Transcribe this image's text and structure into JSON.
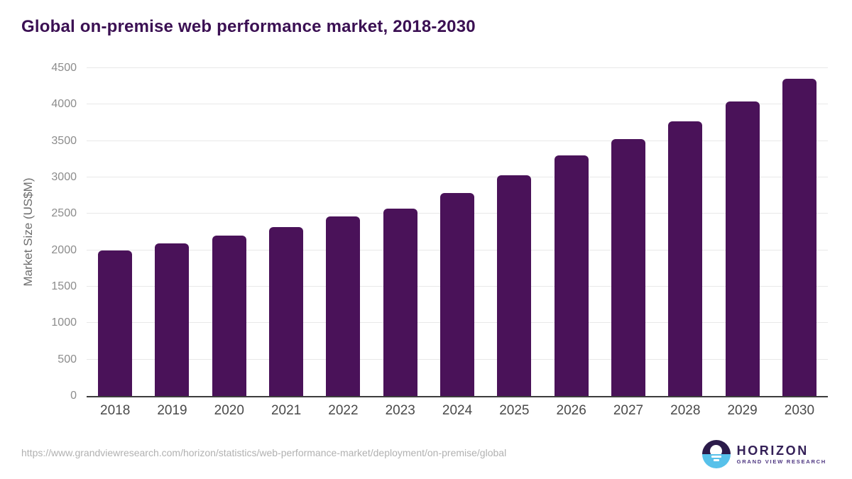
{
  "chart": {
    "title": "Global on-premise web performance market, 2018-2030",
    "ylabel": "Market Size (US$M)"
  },
  "chart_data": {
    "type": "bar",
    "title": "Global on-premise web performance market, 2018-2030",
    "categories": [
      "2018",
      "2019",
      "2020",
      "2021",
      "2022",
      "2023",
      "2024",
      "2025",
      "2026",
      "2027",
      "2028",
      "2029",
      "2030"
    ],
    "values": [
      2000,
      2095,
      2205,
      2320,
      2465,
      2570,
      2785,
      3025,
      3300,
      3525,
      3770,
      4045,
      4355
    ],
    "xlabel": "",
    "ylabel": "Market Size (US$M)",
    "ylim": [
      0,
      4500
    ],
    "yticks": [
      0,
      500,
      1000,
      1500,
      2000,
      2500,
      3000,
      3500,
      4000,
      4500
    ],
    "grid": "horizontal",
    "legend": "none",
    "bar_color": "#4a1259"
  },
  "colors": {
    "title": "#3b1053",
    "bar": "#4a1259",
    "gridline": "#e8e8e8",
    "axis": "#3d3d3d",
    "y_tick": "#8c8c8c",
    "x_tick": "#4a4a4a",
    "url_text": "#b1b1b1",
    "logo_dark": "#2b1b4a",
    "logo_blue": "#57c1ea"
  },
  "footer": {
    "source_url": "https://www.grandviewresearch.com/horizon/statistics/web-performance-market/deployment/on-premise/global",
    "logo": {
      "brand": "HORIZON",
      "sub_brand": "GRAND VIEW RESEARCH"
    }
  }
}
